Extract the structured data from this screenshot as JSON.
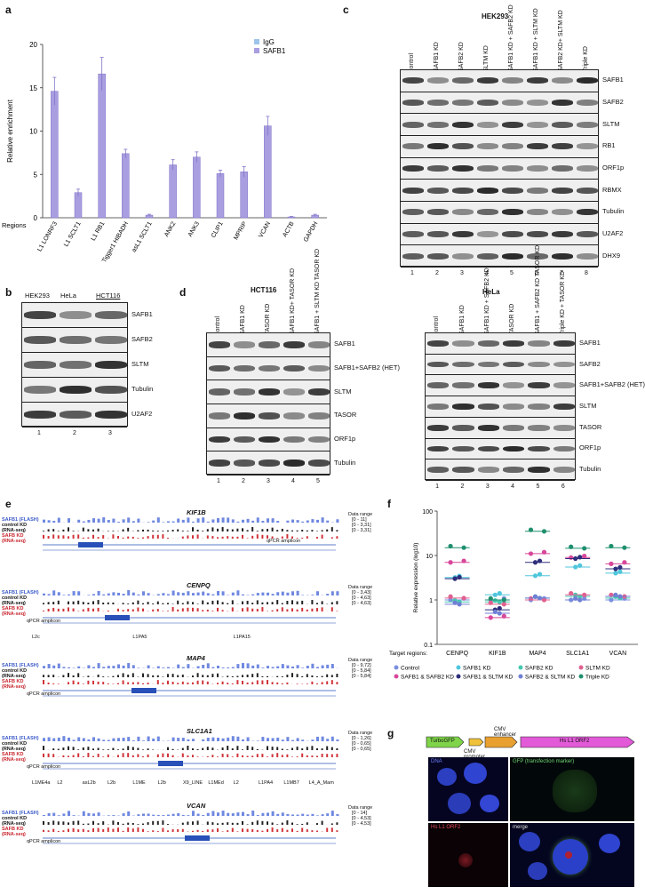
{
  "panels": {
    "a": "a",
    "b": "b",
    "c": "c",
    "d": "d",
    "e": "e",
    "f": "f",
    "g": "g"
  },
  "panel_a": {
    "chart_data": {
      "type": "bar",
      "categories": [
        "L1 LONRF3",
        "L1 SCLT1",
        "L1 RB1",
        "Tigger1 HIBADH",
        "asL1 SCLT1",
        "ANK2",
        "ANK3",
        "CLIP1",
        "MPRIP",
        "VCAN",
        "ACTB",
        "GAPDH"
      ],
      "series": [
        {
          "name": "IgG",
          "values": [
            0,
            0,
            0,
            0,
            0,
            0,
            0,
            0,
            0,
            0,
            0,
            0
          ]
        },
        {
          "name": "SAFB1",
          "values": [
            14.6,
            2.9,
            16.6,
            7.4,
            0.3,
            6.1,
            7.0,
            5.1,
            5.3,
            10.6,
            0.1,
            0.3
          ]
        }
      ],
      "errors": [
        1.6,
        0.4,
        1.9,
        0.5,
        0.1,
        0.6,
        0.6,
        0.4,
        0.6,
        1.1,
        0.05,
        0.1
      ],
      "ylabel": "Relative enrichment",
      "xlabel": "Regions",
      "ylim": [
        0,
        20
      ],
      "yticks": [
        0,
        5,
        10,
        15,
        20
      ],
      "colors": {
        "IgG": "#9fc4ea",
        "SAFB1": "#a99ee0"
      },
      "legend": "top-right"
    }
  },
  "panel_b": {
    "columns": [
      "HEK293",
      "HeLa",
      "HCT116"
    ],
    "rows": [
      "SAFB1",
      "SAFB2",
      "SLTM",
      "Tubulin",
      "U2AF2"
    ],
    "lanes": [
      "1",
      "2",
      "3"
    ]
  },
  "panel_c": {
    "title": "HEK293",
    "columns": [
      "control",
      "SAFB1 KD",
      "SAFB2 KD",
      "SLTM KD",
      "SAFB1 KD + SAFB2 KD",
      "SAFB1 KD + SLTM KD",
      "SAFB2 KD+ SLTM KD",
      "Triple KD"
    ],
    "rows": [
      "SAFB1",
      "SAFB2",
      "SLTM",
      "RB1",
      "ORF1p",
      "RBMX",
      "Tubulin",
      "U2AF2",
      "DHX9"
    ],
    "lanes": [
      "1",
      "2",
      "3",
      "4",
      "5",
      "6",
      "7",
      "8"
    ]
  },
  "panel_d1": {
    "title": "HCT116",
    "columns": [
      "control",
      "SAFB1 KD",
      "TASOR KD",
      "SAFB1 KD+ TASOR KD",
      "SAFB1 + SLTM KD TASOR KD"
    ],
    "rows": [
      "SAFB1",
      "SAFB1+SAFB2 (HET)",
      "SLTM",
      "TASOR",
      "ORF1p",
      "Tubulin"
    ],
    "lanes": [
      "1",
      "2",
      "3",
      "4",
      "5"
    ]
  },
  "panel_d2": {
    "title": "HeLa",
    "columns": [
      "control",
      "SAFB1 KD",
      "SAFB1 KD + SAFB2 KD",
      "TASOR KD",
      "SAFB1 + SAFB2 KD TASOR KD",
      "Triple KD + TASOR KD"
    ],
    "rows": [
      "SAFB1",
      "SAFB2",
      "SAFB1+SAFB2 (HET)",
      "SLTM",
      "TASOR",
      "ORF1p",
      "Tubulin"
    ],
    "lanes": [
      "1",
      "2",
      "3",
      "4",
      "5",
      "6"
    ]
  },
  "panel_e": {
    "tracks": [
      {
        "gene": "KIF1B",
        "labels": [
          "SAFB1 (FLASH)",
          "control KD",
          "(RNA-seq)",
          "SAFB KD",
          "(RNA-seq)"
        ],
        "range_title": "Data range",
        "ranges": [
          "[0 - 11]",
          "[0 - 3,31]",
          "[0 - 3,31]"
        ],
        "amplicon": "qPCR amplicon",
        "repeats": []
      },
      {
        "gene": "CENPQ",
        "labels": [
          "SAFB1 (FLASH)",
          "control KD",
          "(RNA-seq)",
          "SAFB KD",
          "(RNA-seq)"
        ],
        "range_title": "Data range",
        "ranges": [
          "[0 - 3,43]",
          "[0 - 4,63]",
          "[0 - 4,63]"
        ],
        "amplicon": "qPCR amplicon",
        "repeats": [
          "L2c",
          "L1PA5",
          "L1PA15"
        ]
      },
      {
        "gene": "MAP4",
        "labels": [
          "SAFB1 (FLASH)",
          "control KD",
          "(RNA-seq)",
          "SAFB KD",
          "(RNA-seq)"
        ],
        "range_title": "Data range",
        "ranges": [
          "[0 - 9,72]",
          "[0 - 5,84]",
          "[0 - 5,84]"
        ],
        "amplicon": "qPCR amplicon",
        "repeats": []
      },
      {
        "gene": "SLC1A1",
        "labels": [
          "SAFB1 (FLASH)",
          "control KD",
          "(RNA-seq)",
          "SAFB KD",
          "(RNA-seq)"
        ],
        "range_title": "Data range",
        "ranges": [
          "[0 - 1,26]",
          "[0 - 0,65]",
          "[0 - 0,65]"
        ],
        "amplicon": "qPCR amplicon",
        "repeats": [
          "L1ME4a",
          "L2",
          "asL2b",
          "L2b",
          "L1ME",
          "L2b",
          "X9_LINE",
          "L1MEd",
          "L2",
          "L1PA4",
          "L1MB7",
          "L4_A_Mam"
        ]
      },
      {
        "gene": "VCAN",
        "labels": [
          "SAFB1 (FLASH)",
          "control KD",
          "(RNA-seq)",
          "SAFB KD",
          "(RNA-seq)"
        ],
        "range_title": "Data range",
        "ranges": [
          "[0 - 14]",
          "[0 - 4,53]",
          "[0 - 4,53]"
        ],
        "amplicon": "qPCR amplicon",
        "repeats": []
      }
    ]
  },
  "panel_f": {
    "chart_data": {
      "type": "scatter",
      "ylabel": "Relative expression (log10)",
      "xlabel": "Target regions:",
      "categories": [
        "CENPQ",
        "KIF1B",
        "MAP4",
        "SLC1A1",
        "VCAN"
      ],
      "yscale": "log",
      "ylim": [
        0.1,
        100
      ],
      "yticks": [
        "0.1",
        "1",
        "10",
        "100"
      ],
      "series": [
        {
          "name": "Control",
          "color": "#7b8fe0",
          "values": [
            1.0,
            1.0,
            1.0,
            1.0,
            1.0
          ]
        },
        {
          "name": "SAFB1 KD",
          "color": "#4fc6dc",
          "values": [
            3.2,
            1.3,
            3.5,
            5.5,
            4.0
          ]
        },
        {
          "name": "SAFB2 KD",
          "color": "#45c9b0",
          "values": [
            0.9,
            0.9,
            1.1,
            1.2,
            1.1
          ]
        },
        {
          "name": "SLTM KD",
          "color": "#e0608f",
          "values": [
            1.1,
            0.8,
            1.0,
            1.3,
            1.2
          ]
        },
        {
          "name": "SAFB1 & SAFB2 KD",
          "color": "#d8479a",
          "values": [
            7.0,
            0.4,
            11.0,
            9.0,
            6.5
          ]
        },
        {
          "name": "SAFB1 & SLTM KD",
          "color": "#2e2e7c",
          "values": [
            3.0,
            0.6,
            7.0,
            8.5,
            5.0
          ]
        },
        {
          "name": "SAFB2 & SLTM KD",
          "color": "#6f7fd4",
          "values": [
            0.8,
            0.5,
            1.1,
            1.0,
            1.2
          ]
        },
        {
          "name": "Triple KD",
          "color": "#1f8f6e",
          "values": [
            15.0,
            1.0,
            35.0,
            14.5,
            15.0
          ]
        }
      ],
      "legend": "bottom"
    }
  },
  "panel_g": {
    "construct": [
      "TurboGFP",
      "CMV promoter",
      "CMV enhancer",
      "Hs L1 ORF2"
    ],
    "images": [
      "DNA",
      "GFP (transfection marker)",
      "Hs L1 ORF2",
      "merge"
    ]
  }
}
